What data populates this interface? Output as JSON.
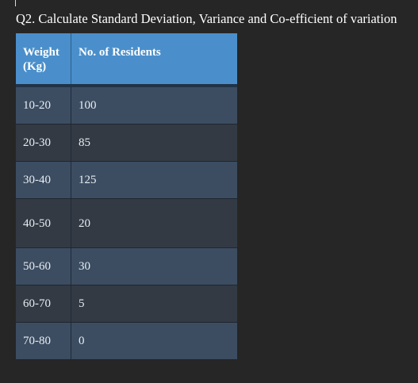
{
  "question": "Q2. Calculate Standard Deviation, Variance and Co-efficient of variation",
  "table": {
    "headers": [
      "Weight (Kg)",
      "No. of Residents"
    ],
    "rows": [
      {
        "weight": "10-20",
        "residents": "100"
      },
      {
        "weight": "20-30",
        "residents": "85"
      },
      {
        "weight": "30-40",
        "residents": "125"
      },
      {
        "weight": "40-50",
        "residents": "20"
      },
      {
        "weight": "50-60",
        "residents": "30"
      },
      {
        "weight": "60-70",
        "residents": "5"
      },
      {
        "weight": "70-80",
        "residents": "0"
      }
    ]
  },
  "colors": {
    "background": "#262626",
    "header": "#4a8fcb",
    "row_odd": "#3c4d62",
    "row_even": "#333a44"
  }
}
